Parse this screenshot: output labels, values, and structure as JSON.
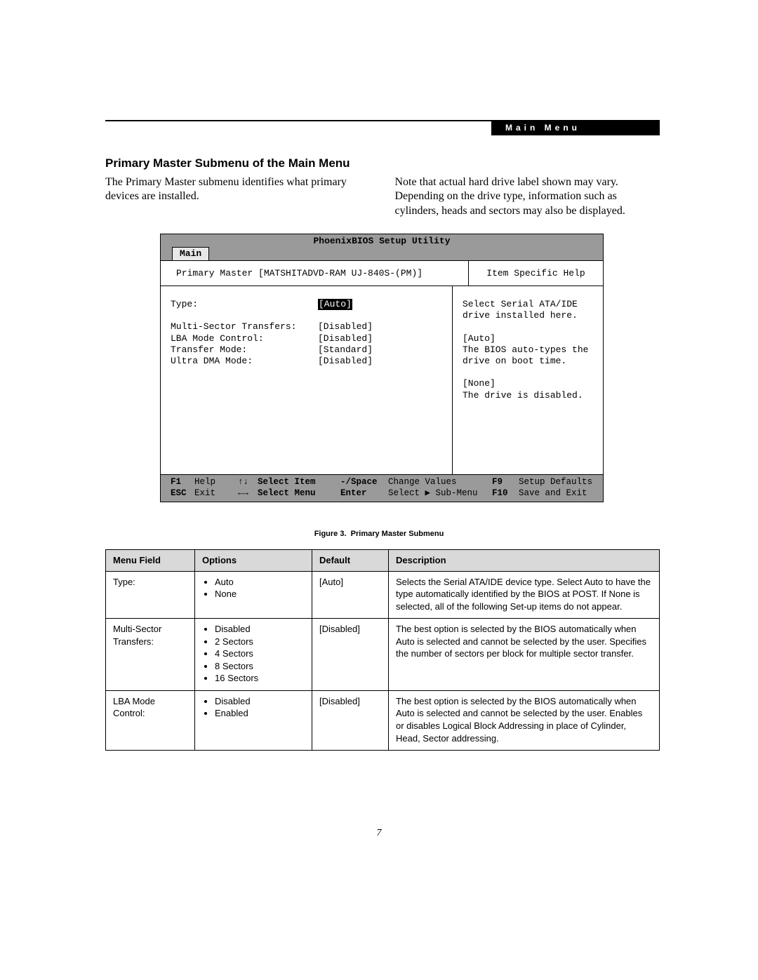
{
  "header": {
    "menu_tag": "Main Menu"
  },
  "section_title": "Primary Master Submenu of the Main Menu",
  "intro": {
    "left": "The Primary Master submenu identifies what primary devices are installed.",
    "right": "Note that actual hard drive label shown may vary. Depending on the drive type, information such as cylinders, heads and sectors may also be displayed."
  },
  "bios": {
    "title": "PhoenixBIOS Setup Utility",
    "tab": "Main",
    "sub_left": "Primary Master [MATSHITADVD-RAM UJ-840S-(PM)]",
    "sub_right": "Item Specific Help",
    "rows": [
      {
        "label": "Type:",
        "value": "[Auto]",
        "highlight": true
      },
      {
        "label": "",
        "value": ""
      },
      {
        "label": "Multi-Sector Transfers:",
        "value": "[Disabled]"
      },
      {
        "label": "LBA Mode Control:",
        "value": "[Disabled]"
      },
      {
        "label": "Transfer Mode:",
        "value": "[Standard]"
      },
      {
        "label": "Ultra DMA Mode:",
        "value": "[Disabled]"
      }
    ],
    "help": [
      "Select Serial ATA/IDE",
      "drive installed here.",
      "",
      "[Auto]",
      "The BIOS auto-types the",
      "drive on boot time.",
      "",
      "[None]",
      "The drive is disabled."
    ],
    "footer": {
      "r1": {
        "k1": "F1",
        "a1": "Help",
        "arr": "↑↓",
        "act": "Select Item",
        "k2": "-/Space",
        "act2": "Change Values",
        "k3": "F9",
        "act3": "Setup Defaults"
      },
      "r2": {
        "k1": "ESC",
        "a1": "Exit",
        "arr": "←→",
        "act": "Select Menu",
        "k2": "Enter",
        "act2": "Select ▶ Sub-Menu",
        "k3": "F10",
        "act3": "Save and Exit"
      }
    }
  },
  "figure_caption_label": "Figure 3.",
  "figure_caption_text": "Primary Master Submenu",
  "table": {
    "columns": [
      "Menu Field",
      "Options",
      "Default",
      "Description"
    ],
    "rows": [
      {
        "menu": "Type:",
        "options": [
          "Auto",
          "None"
        ],
        "default": "[Auto]",
        "desc": "Selects the Serial ATA/IDE device type. Select Auto to have the type automatically identified by the BIOS at POST. If None is selected, all of the following Set-up items do not appear."
      },
      {
        "menu": "Multi-Sector Transfers:",
        "options": [
          "Disabled",
          "2 Sectors",
          "4 Sectors",
          "8 Sectors",
          "16 Sectors"
        ],
        "default": "[Disabled]",
        "desc": "The best option is selected by the BIOS automatically when Auto is selected and cannot be selected by the user. Specifies the number of sectors per block for multiple sector transfer."
      },
      {
        "menu": "LBA Mode Control:",
        "options": [
          "Disabled",
          "Enabled"
        ],
        "default": "[Disabled]",
        "desc": "The best option is selected by the BIOS automatically when Auto is selected and cannot be selected by the user. Enables or disables Logical Block Addressing in place of Cylinder, Head, Sector addressing."
      }
    ]
  },
  "page_number": "7"
}
